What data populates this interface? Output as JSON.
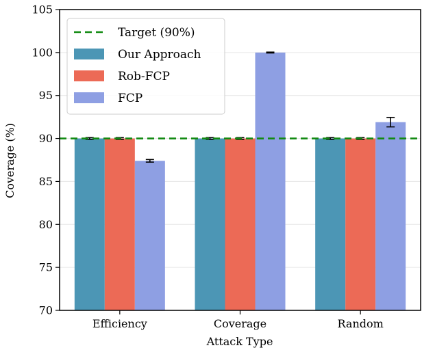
{
  "chart_data": {
    "type": "bar",
    "xlabel": "Attack Type",
    "ylabel": "Coverage (%)",
    "ylim": [
      70,
      105
    ],
    "yticks": [
      70,
      75,
      80,
      85,
      90,
      95,
      100,
      105
    ],
    "categories": [
      "Efficiency",
      "Coverage",
      "Random"
    ],
    "grid": "y",
    "legend": "top-left",
    "series": [
      {
        "name": "Our Approach",
        "color": "#4c96b5",
        "values": [
          90.0,
          90.0,
          90.0
        ],
        "errors": [
          0.1,
          0.1,
          0.1
        ]
      },
      {
        "name": "Rob-FCP",
        "color": "#ec6a56",
        "values": [
          90.0,
          90.0,
          90.0
        ],
        "errors": [
          0.1,
          0.1,
          0.1
        ]
      },
      {
        "name": "FCP",
        "color": "#8e9fe3",
        "values": [
          87.4,
          100.0,
          91.9
        ],
        "errors": [
          0.15,
          0.05,
          0.55
        ]
      }
    ],
    "reference_line": {
      "label": "Target (90%)",
      "value": 90,
      "color": "#118a11",
      "style": "dashed"
    }
  }
}
